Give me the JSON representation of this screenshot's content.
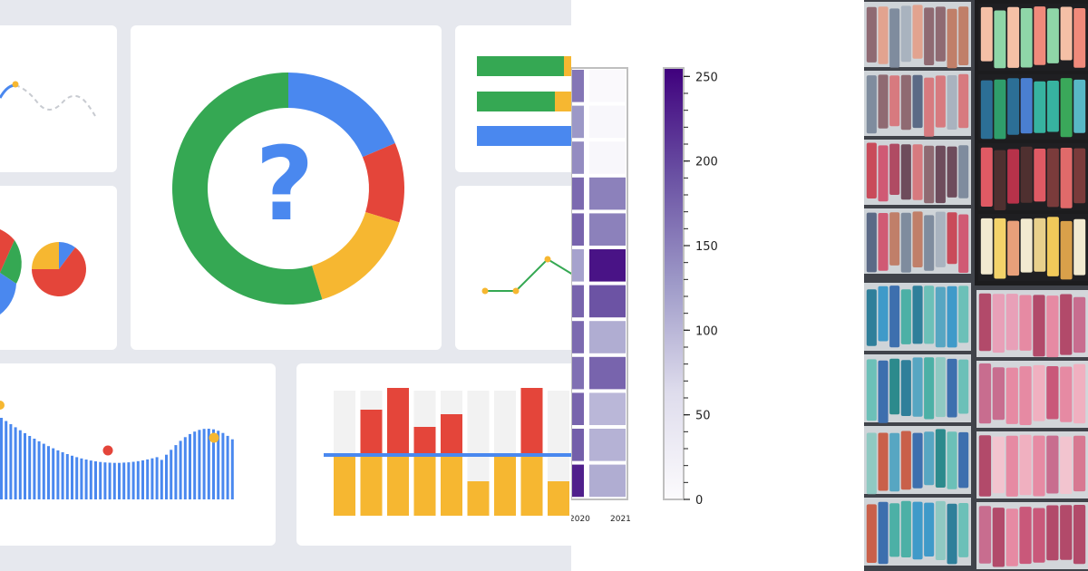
{
  "illustration": {
    "help_glyph": "?",
    "colors": {
      "blue": "#4a88ef",
      "red": "#e4453a",
      "yellow": "#f6b731",
      "green": "#35a853",
      "grey": "#c8cbd1",
      "background": "#e6e8ee"
    },
    "help_icon": "question-mark-icon"
  },
  "chart_data": [
    {
      "type": "heatmap",
      "x_tick_labels": [
        "2020",
        "2021"
      ],
      "colorbar": {
        "ticks": [
          "0",
          "50",
          "100",
          "150",
          "200",
          "250"
        ],
        "range": [
          0,
          255
        ],
        "colormap": "Purples"
      },
      "rows": [
        [
          160,
          5
        ],
        [
          130,
          8
        ],
        [
          140,
          8
        ],
        [
          170,
          150
        ],
        [
          175,
          150
        ],
        [
          120,
          240
        ],
        [
          175,
          190
        ],
        [
          170,
          110
        ],
        [
          165,
          175
        ],
        [
          175,
          100
        ],
        [
          180,
          105
        ],
        [
          230,
          110
        ]
      ]
    }
  ],
  "photo": {
    "subject": "pastel-sticks-photo"
  }
}
